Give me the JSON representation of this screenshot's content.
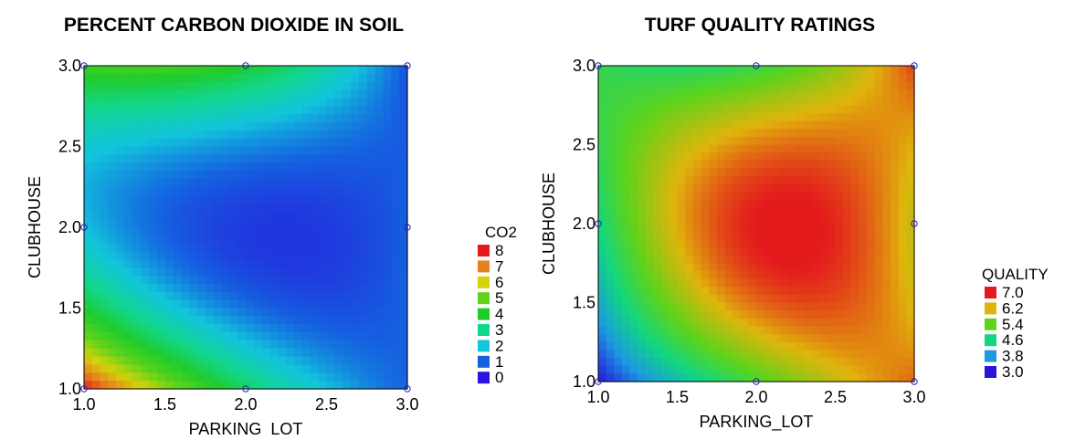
{
  "chart_data": [
    {
      "type": "heatmap",
      "title": "PERCENT CARBON DIOXIDE IN SOIL",
      "xlabel": "PARKING_LOT",
      "ylabel": "CLUBHOUSE",
      "xlim": [
        1.0,
        3.0
      ],
      "ylim": [
        1.0,
        3.0
      ],
      "x_ticks": [
        "1.0",
        "1.5",
        "2.0",
        "2.5",
        "3.0"
      ],
      "y_ticks": [
        "1.0",
        "1.5",
        "2.0",
        "2.5",
        "3.0"
      ],
      "x_grid": [
        1.0,
        2.0,
        3.0
      ],
      "y_grid": [
        1.0,
        2.0,
        3.0
      ],
      "z": [
        [
          8.0,
          3.5,
          1.0
        ],
        [
          2.0,
          0.5,
          1.0
        ],
        [
          4.5,
          4.0,
          0.8
        ]
      ],
      "legend_title": "CO2",
      "legend": [
        {
          "label": "8",
          "color": "#e31a1c"
        },
        {
          "label": "7",
          "color": "#e8801e"
        },
        {
          "label": "6",
          "color": "#d4d20a"
        },
        {
          "label": "5",
          "color": "#5ed31a"
        },
        {
          "label": "4",
          "color": "#1fcc2c"
        },
        {
          "label": "3",
          "color": "#12d68e"
        },
        {
          "label": "2",
          "color": "#12c4dc"
        },
        {
          "label": "1",
          "color": "#1560e0"
        },
        {
          "label": "0",
          "color": "#2a14dc"
        }
      ],
      "legend_levels": [
        8,
        7,
        6,
        5,
        4,
        3,
        2,
        1,
        0
      ]
    },
    {
      "type": "heatmap",
      "title": "TURF QUALITY RATINGS",
      "xlabel": "PARKING_LOT",
      "ylabel": "CLUBHOUSE",
      "xlim": [
        1.0,
        3.0
      ],
      "ylim": [
        1.0,
        3.0
      ],
      "x_ticks": [
        "1.0",
        "1.5",
        "2.0",
        "2.5",
        "3.0"
      ],
      "y_ticks": [
        "1.0",
        "1.5",
        "2.0",
        "2.5",
        "3.0"
      ],
      "x_grid": [
        1.0,
        2.0,
        3.0
      ],
      "y_grid": [
        1.0,
        2.0,
        3.0
      ],
      "z": [
        [
          3.0,
          5.2,
          6.6
        ],
        [
          4.6,
          7.0,
          6.0
        ],
        [
          5.0,
          5.0,
          6.8
        ]
      ],
      "legend_title": "QUALITY",
      "legend": [
        {
          "label": "7.0",
          "color": "#e31a1c"
        },
        {
          "label": "6.2",
          "color": "#e0b40c"
        },
        {
          "label": "5.4",
          "color": "#5ed31a"
        },
        {
          "label": "4.6",
          "color": "#12d680"
        },
        {
          "label": "3.8",
          "color": "#1a9be0"
        },
        {
          "label": "3.0",
          "color": "#2a14dc"
        }
      ],
      "legend_levels": [
        7.0,
        6.2,
        5.4,
        4.6,
        3.8,
        3.0
      ]
    }
  ]
}
